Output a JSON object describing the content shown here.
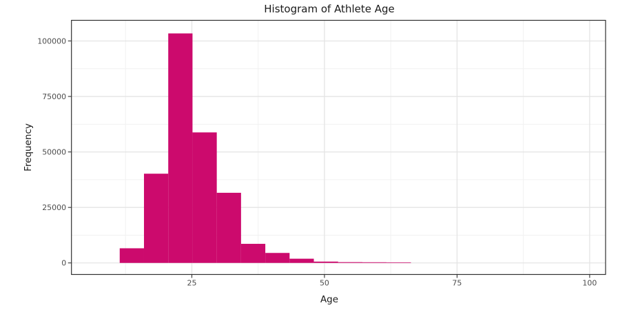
{
  "chart_data": {
    "type": "histogram",
    "title": "Histogram of Athlete Age",
    "xlabel": "Age",
    "ylabel": "Frequency",
    "bin_start": 11.4,
    "bin_width": 4.575,
    "bin_count": 12,
    "frequencies": [
      6600,
      40200,
      103400,
      58800,
      31600,
      8600,
      4500,
      1900,
      600,
      350,
      300,
      250
    ],
    "bin_ranges_approx": [
      [
        11.4,
        16.0
      ],
      [
        16.0,
        20.6
      ],
      [
        20.6,
        25.1
      ],
      [
        25.1,
        29.7
      ],
      [
        29.7,
        34.3
      ],
      [
        34.3,
        38.9
      ],
      [
        38.9,
        43.4
      ],
      [
        43.4,
        48.0
      ],
      [
        48.0,
        52.6
      ],
      [
        52.6,
        57.2
      ],
      [
        57.2,
        61.7
      ],
      [
        61.7,
        66.3
      ]
    ],
    "xlim": [
      2.3,
      103.0
    ],
    "ylim": [
      -5200,
      109300
    ],
    "x_tick_values": [
      25,
      50,
      75,
      100
    ],
    "x_tick_labels": [
      "25",
      "50",
      "75",
      "100"
    ],
    "y_tick_values": [
      0,
      25000,
      50000,
      75000,
      100000
    ],
    "y_tick_labels": [
      "0",
      "25000",
      "50000",
      "75000",
      "100000"
    ],
    "x_minor_gridlines": [
      12.5,
      37.5,
      62.5,
      87.5
    ],
    "y_minor_gridlines": [
      12500,
      37500,
      62500,
      87500
    ],
    "grid": "major+minor",
    "legend_position": "none",
    "colors": {
      "bar": "#CC0A6D",
      "grid_major": "#E4E4E4",
      "grid_minor": "#F1F1F1",
      "panel_border": "#2E2E2E",
      "tick_mark": "#333333",
      "tick_label": "#4D4D4D",
      "text": "#1A1A1A",
      "background": "#FFFFFF"
    }
  }
}
